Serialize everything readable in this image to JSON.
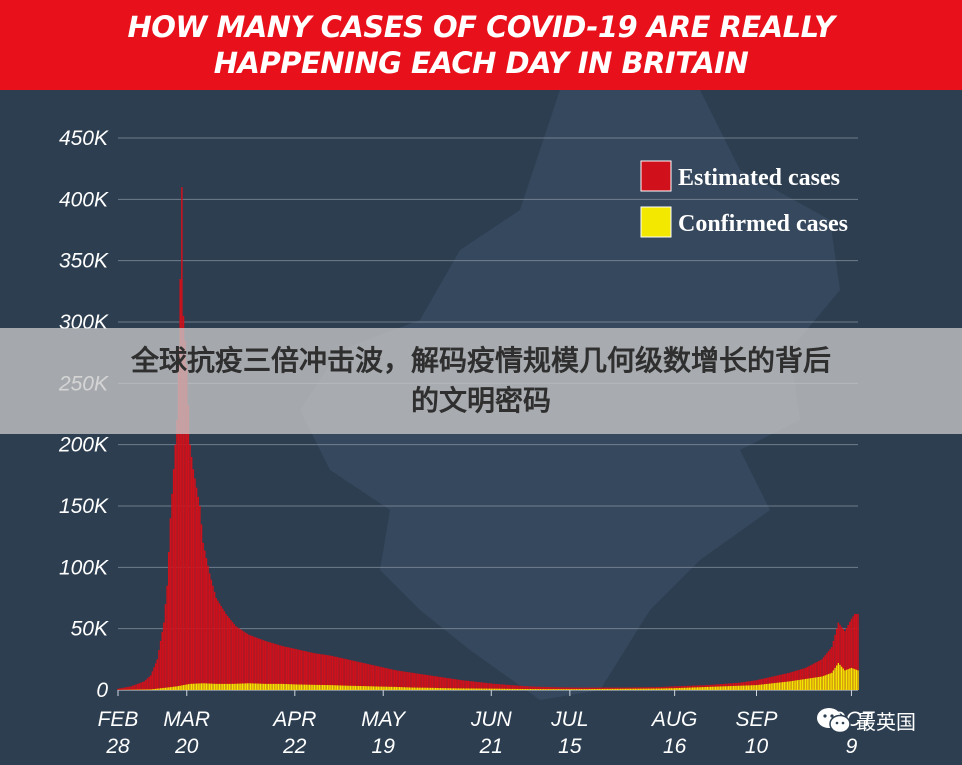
{
  "title": {
    "line1": "HOW MANY CASES OF COVID-19 ARE REALLY",
    "line2": "HAPPENING EACH DAY IN BRITAIN"
  },
  "overlay": {
    "line1": "全球抗疫三倍冲击波，解码疫情规模几何级数增长的背后",
    "line2": "的文明密码"
  },
  "watermark": {
    "text": "最英国",
    "icon": "wechat-icon"
  },
  "colors": {
    "background": "#2c3e50",
    "estimated": "#d0101a",
    "confirmed": "#f2e800",
    "title_bg": "#e8111b"
  },
  "chart_data": {
    "type": "bar",
    "title": "HOW MANY CASES OF COVID-19 ARE REALLY HAPPENING EACH DAY IN BRITAIN",
    "xlabel": "",
    "ylabel": "",
    "ylim": [
      0,
      450000
    ],
    "yticks": [
      0,
      50000,
      100000,
      150000,
      200000,
      250000,
      300000,
      350000,
      400000,
      450000
    ],
    "ytick_labels": [
      "0",
      "50K",
      "100K",
      "150K",
      "200K",
      "250K",
      "300K",
      "350K",
      "400K",
      "450K"
    ],
    "xticks": [
      {
        "day": 0,
        "month": "FEB",
        "date": "28"
      },
      {
        "day": 21,
        "month": "MAR",
        "date": "20"
      },
      {
        "day": 54,
        "month": "APR",
        "date": "22"
      },
      {
        "day": 81,
        "month": "MAY",
        "date": "19"
      },
      {
        "day": 114,
        "month": "JUN",
        "date": "21"
      },
      {
        "day": 138,
        "month": "JUL",
        "date": "15"
      },
      {
        "day": 170,
        "month": "AUG",
        "date": "16"
      },
      {
        "day": 195,
        "month": "SEP",
        "date": "10"
      },
      {
        "day": 224,
        "month": "OCT",
        "date": "9"
      }
    ],
    "legend": {
      "position": "top-right",
      "entries": [
        "Estimated cases",
        "Confirmed cases"
      ]
    },
    "grid": true,
    "series": [
      {
        "name": "Estimated cases",
        "points": [
          [
            0,
            1000
          ],
          [
            4,
            3000
          ],
          [
            8,
            7000
          ],
          [
            10,
            12000
          ],
          [
            12,
            25000
          ],
          [
            14,
            55000
          ],
          [
            15,
            85000
          ],
          [
            16,
            140000
          ],
          [
            17,
            180000
          ],
          [
            18,
            220000
          ],
          [
            19,
            335000
          ],
          [
            19.5,
            410000
          ],
          [
            20,
            305000
          ],
          [
            21,
            265000
          ],
          [
            22,
            200000
          ],
          [
            23,
            180000
          ],
          [
            24,
            165000
          ],
          [
            25,
            150000
          ],
          [
            26,
            120000
          ],
          [
            28,
            95000
          ],
          [
            30,
            75000
          ],
          [
            33,
            62000
          ],
          [
            36,
            52000
          ],
          [
            40,
            45000
          ],
          [
            45,
            40000
          ],
          [
            50,
            36000
          ],
          [
            55,
            33000
          ],
          [
            60,
            30000
          ],
          [
            65,
            28000
          ],
          [
            70,
            25000
          ],
          [
            75,
            22000
          ],
          [
            80,
            19000
          ],
          [
            85,
            16000
          ],
          [
            90,
            14000
          ],
          [
            95,
            12000
          ],
          [
            100,
            10000
          ],
          [
            105,
            8000
          ],
          [
            110,
            6500
          ],
          [
            115,
            5000
          ],
          [
            120,
            4000
          ],
          [
            125,
            3000
          ],
          [
            130,
            2500
          ],
          [
            135,
            2200
          ],
          [
            140,
            2000
          ],
          [
            145,
            2000
          ],
          [
            150,
            2000
          ],
          [
            155,
            2000
          ],
          [
            160,
            2200
          ],
          [
            165,
            2400
          ],
          [
            170,
            3000
          ],
          [
            175,
            3500
          ],
          [
            180,
            4000
          ],
          [
            185,
            5000
          ],
          [
            190,
            6000
          ],
          [
            195,
            8000
          ],
          [
            200,
            11000
          ],
          [
            205,
            14000
          ],
          [
            210,
            18000
          ],
          [
            215,
            25000
          ],
          [
            218,
            35000
          ],
          [
            220,
            55000
          ],
          [
            222,
            48000
          ],
          [
            224,
            58000
          ],
          [
            225,
            62000
          ],
          [
            226,
            62000
          ]
        ]
      },
      {
        "name": "Confirmed cases",
        "points": [
          [
            0,
            50
          ],
          [
            10,
            500
          ],
          [
            15,
            2000
          ],
          [
            18,
            3000
          ],
          [
            20,
            4000
          ],
          [
            22,
            5000
          ],
          [
            26,
            5500
          ],
          [
            30,
            5000
          ],
          [
            35,
            5000
          ],
          [
            40,
            5500
          ],
          [
            45,
            5000
          ],
          [
            50,
            5000
          ],
          [
            55,
            4500
          ],
          [
            60,
            4200
          ],
          [
            65,
            4000
          ],
          [
            70,
            3500
          ],
          [
            75,
            3200
          ],
          [
            80,
            2800
          ],
          [
            85,
            2500
          ],
          [
            90,
            2000
          ],
          [
            95,
            1800
          ],
          [
            100,
            1500
          ],
          [
            105,
            1300
          ],
          [
            110,
            1200
          ],
          [
            115,
            1100
          ],
          [
            120,
            900
          ],
          [
            125,
            800
          ],
          [
            130,
            700
          ],
          [
            135,
            700
          ],
          [
            140,
            700
          ],
          [
            145,
            800
          ],
          [
            150,
            900
          ],
          [
            155,
            1000
          ],
          [
            160,
            1100
          ],
          [
            165,
            1200
          ],
          [
            170,
            1500
          ],
          [
            175,
            2000
          ],
          [
            180,
            2500
          ],
          [
            185,
            3000
          ],
          [
            190,
            3500
          ],
          [
            195,
            4000
          ],
          [
            200,
            5500
          ],
          [
            205,
            7000
          ],
          [
            210,
            9000
          ],
          [
            215,
            11000
          ],
          [
            218,
            14000
          ],
          [
            220,
            22000
          ],
          [
            222,
            16000
          ],
          [
            224,
            18000
          ],
          [
            225,
            17000
          ],
          [
            226,
            16000
          ]
        ]
      }
    ]
  }
}
